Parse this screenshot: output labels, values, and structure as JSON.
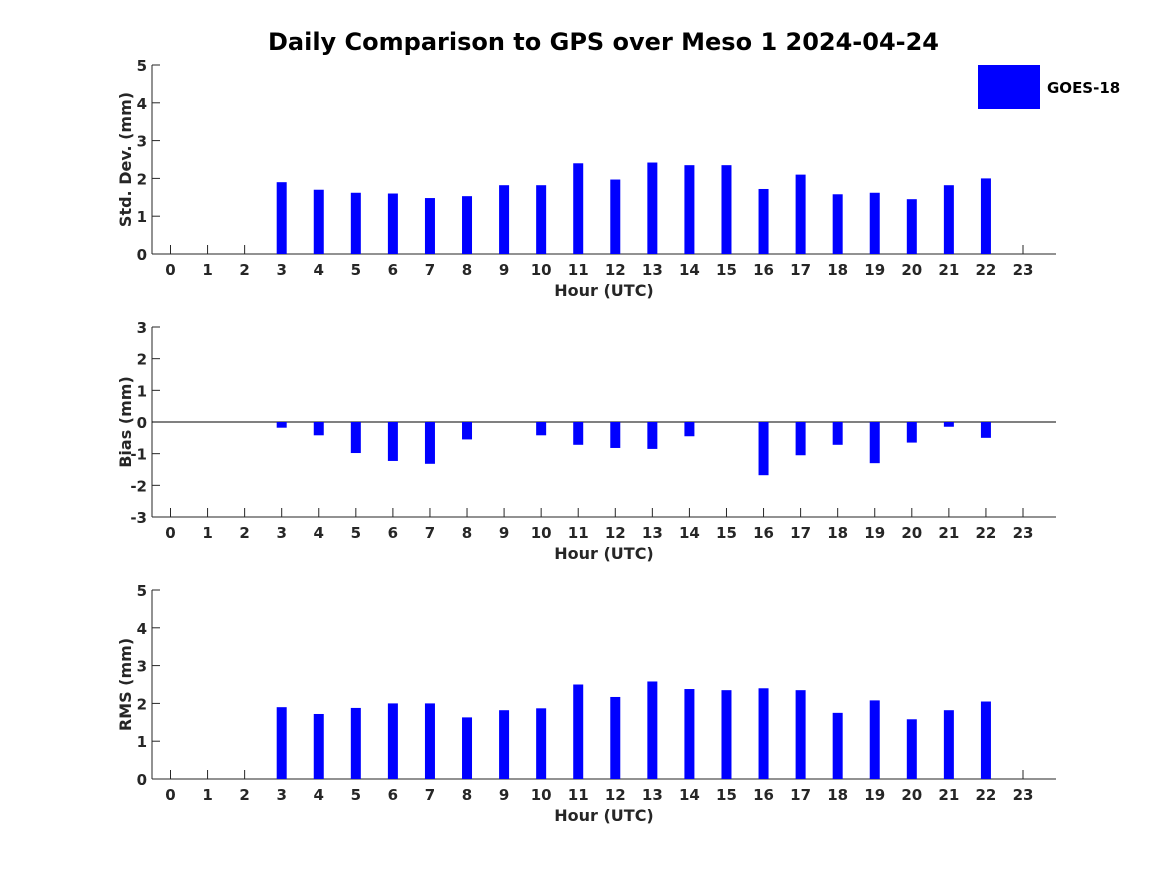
{
  "chart_data": [
    {
      "type": "bar",
      "title": "Daily Comparison to GPS over Meso 1 2024-04-24",
      "xlabel": "Hour (UTC)",
      "ylabel": "Std. Dev. (mm)",
      "categories": [
        "0",
        "1",
        "2",
        "3",
        "4",
        "5",
        "6",
        "7",
        "8",
        "9",
        "10",
        "11",
        "12",
        "13",
        "14",
        "15",
        "16",
        "17",
        "18",
        "19",
        "20",
        "21",
        "22",
        "23"
      ],
      "ylim": [
        0,
        5
      ],
      "yticks": [
        0,
        1,
        2,
        3,
        4,
        5
      ],
      "series": [
        {
          "name": "GOES-18",
          "color": "#0000ff",
          "values": [
            null,
            null,
            null,
            1.9,
            1.7,
            1.62,
            1.6,
            1.48,
            1.53,
            1.82,
            1.82,
            2.4,
            1.97,
            2.42,
            2.35,
            2.35,
            1.72,
            2.1,
            1.58,
            1.62,
            1.45,
            1.82,
            2.0,
            null
          ]
        }
      ]
    },
    {
      "type": "bar",
      "xlabel": "Hour (UTC)",
      "ylabel": "Bias (mm)",
      "categories": [
        "0",
        "1",
        "2",
        "3",
        "4",
        "5",
        "6",
        "7",
        "8",
        "9",
        "10",
        "11",
        "12",
        "13",
        "14",
        "15",
        "16",
        "17",
        "18",
        "19",
        "20",
        "21",
        "22",
        "23"
      ],
      "ylim": [
        -3,
        3
      ],
      "yticks": [
        -3,
        -2,
        -1,
        0,
        1,
        2,
        3
      ],
      "series": [
        {
          "name": "GOES-18",
          "color": "#0000ff",
          "values": [
            null,
            null,
            null,
            -0.18,
            -0.42,
            -0.98,
            -1.23,
            -1.32,
            -0.55,
            0.0,
            -0.42,
            -0.72,
            -0.82,
            -0.85,
            -0.45,
            0.0,
            -1.68,
            -1.05,
            -0.72,
            -1.3,
            -0.65,
            -0.15,
            -0.5,
            null
          ]
        }
      ]
    },
    {
      "type": "bar",
      "xlabel": "Hour (UTC)",
      "ylabel": "RMS (mm)",
      "categories": [
        "0",
        "1",
        "2",
        "3",
        "4",
        "5",
        "6",
        "7",
        "8",
        "9",
        "10",
        "11",
        "12",
        "13",
        "14",
        "15",
        "16",
        "17",
        "18",
        "19",
        "20",
        "21",
        "22",
        "23"
      ],
      "ylim": [
        0,
        5
      ],
      "yticks": [
        0,
        1,
        2,
        3,
        4,
        5
      ],
      "series": [
        {
          "name": "GOES-18",
          "color": "#0000ff",
          "values": [
            null,
            null,
            null,
            1.9,
            1.72,
            1.88,
            2.0,
            2.0,
            1.63,
            1.82,
            1.87,
            2.5,
            2.17,
            2.58,
            2.38,
            2.35,
            2.4,
            2.35,
            1.75,
            2.08,
            1.58,
            1.82,
            2.05,
            null
          ]
        }
      ]
    }
  ],
  "legend": {
    "label": "GOES-18",
    "color": "#0000ff"
  }
}
